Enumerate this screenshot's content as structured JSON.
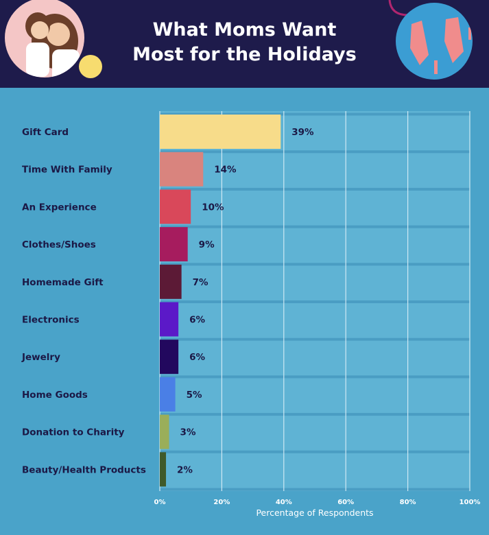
{
  "header": {
    "title_line1": "What Moms Want",
    "title_line2": "Most for the Holidays",
    "left_image": "mother-daughter-photo",
    "right_image": "pink-heels-photo",
    "header_color": "#1e1b4b",
    "accent_yellow": "#f7dc6f"
  },
  "chart_data": {
    "type": "bar",
    "orientation": "horizontal",
    "categories": [
      "Gift Card",
      "Time With Family",
      "An Experience",
      "Clothes/Shoes",
      "Homemade Gift",
      "Electronics",
      "Jewelry",
      "Home Goods",
      "Donation to Charity",
      "Beauty/Health Products"
    ],
    "values": [
      39,
      14,
      10,
      9,
      7,
      6,
      6,
      5,
      3,
      2
    ],
    "value_labels": [
      "39%",
      "14%",
      "10%",
      "9%",
      "7%",
      "6%",
      "6%",
      "5%",
      "3%",
      "2%"
    ],
    "colors": [
      "#f7dc8a",
      "#d9847e",
      "#d9485a",
      "#a61c5e",
      "#5c1a36",
      "#5b19c8",
      "#22085e",
      "#4a7fe6",
      "#9aae5a",
      "#3f5a2a"
    ],
    "xlabel": "Percentage of Respondents",
    "xlim": [
      0,
      100
    ],
    "xticks": [
      "0%",
      "20%",
      "40%",
      "60%",
      "80%",
      "100%"
    ],
    "grid": true
  }
}
